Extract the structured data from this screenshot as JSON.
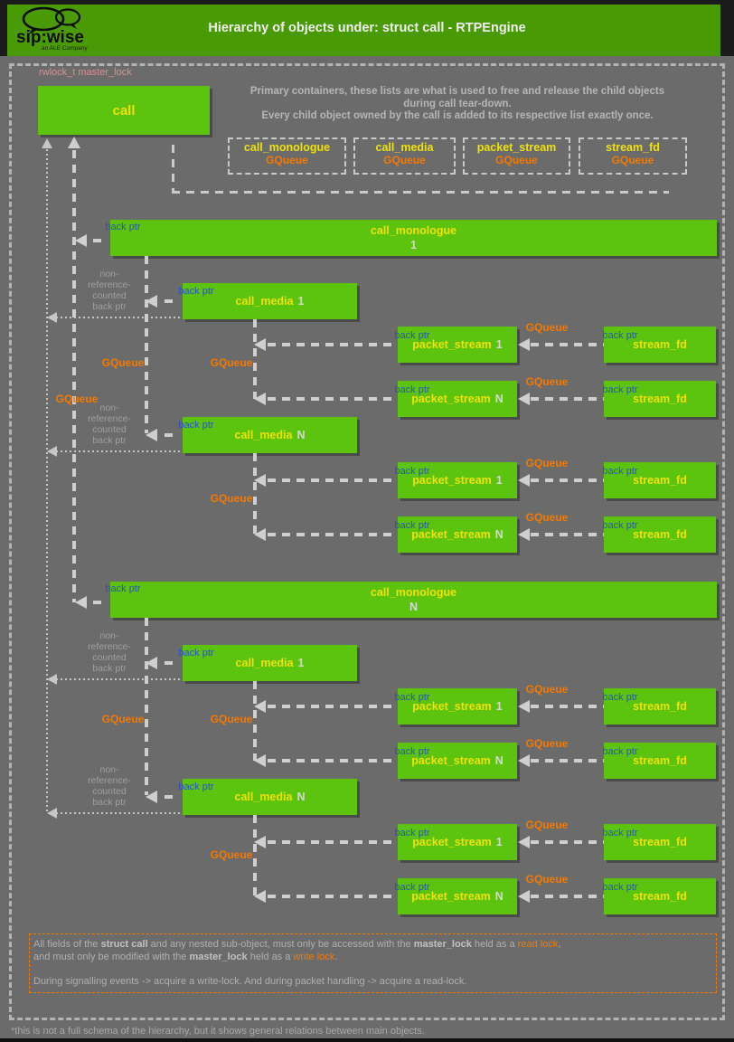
{
  "header": {
    "title": "Hierarchy of objects under: struct call - RTPEngine",
    "logo": {
      "brand": "sip:wise",
      "tagline": "an ALE Company"
    }
  },
  "colors": {
    "header_green": "#4a9a06",
    "box_green": "#5cc30e",
    "accent_yellow": "#eee20a",
    "accent_orange": "#f57900",
    "back_ptr_blue": "#2b50c8",
    "lock_pink": "#dd8e8e"
  },
  "diagram": {
    "master_lock_label": "rwlock_t master_lock",
    "call_label": "call",
    "intro": [
      "Primary containers, these lists are what is used to free and release the child objects",
      "during call tear-down.",
      "Every child object owned by the call is added to its respective list exactly once."
    ],
    "containers": [
      {
        "name": "call_monologue",
        "type": "GQueue"
      },
      {
        "name": "call_media",
        "type": "GQueue"
      },
      {
        "name": "packet_stream",
        "type": "GQueue"
      },
      {
        "name": "stream_fd",
        "type": "GQueue"
      }
    ],
    "labels": {
      "back_ptr": "back ptr",
      "gqueue": "GQueue",
      "non_ref_lines": [
        "non-",
        "reference-",
        "counted",
        "back ptr"
      ]
    },
    "monologues": [
      {
        "name": "call_monologue",
        "index": "1",
        "medias": [
          {
            "name": "call_media",
            "index": "1",
            "streams": [
              {
                "name": "packet_stream",
                "index": "1",
                "fd": "stream_fd"
              },
              {
                "name": "packet_stream",
                "index": "N",
                "fd": "stream_fd"
              }
            ]
          },
          {
            "name": "call_media",
            "index": "N",
            "streams": [
              {
                "name": "packet_stream",
                "index": "1",
                "fd": "stream_fd"
              },
              {
                "name": "packet_stream",
                "index": "N",
                "fd": "stream_fd"
              }
            ]
          }
        ]
      },
      {
        "name": "call_monologue",
        "index": "N",
        "medias": [
          {
            "name": "call_media",
            "index": "1",
            "streams": [
              {
                "name": "packet_stream",
                "index": "1",
                "fd": "stream_fd"
              },
              {
                "name": "packet_stream",
                "index": "N",
                "fd": "stream_fd"
              }
            ]
          },
          {
            "name": "call_media",
            "index": "N",
            "streams": [
              {
                "name": "packet_stream",
                "index": "1",
                "fd": "stream_fd"
              },
              {
                "name": "packet_stream",
                "index": "N",
                "fd": "stream_fd"
              }
            ]
          }
        ]
      }
    ]
  },
  "legend": {
    "lines": [
      [
        {
          "t": "All fields of the "
        },
        {
          "t": "struct call",
          "b": true
        },
        {
          "t": " and any nested sub-object, must only be accessed with the "
        },
        {
          "t": "master_lock",
          "b": true
        },
        {
          "t": " held as a "
        },
        {
          "t": "read lock",
          "c": "orange"
        },
        {
          "t": ","
        }
      ],
      [
        {
          "t": "and must only be modified with the "
        },
        {
          "t": "master_lock",
          "b": true
        },
        {
          "t": " held as a "
        },
        {
          "t": "write lock",
          "c": "orange"
        },
        {
          "t": "."
        }
      ],
      [],
      [
        {
          "t": "During signalling events -> acquire a write-lock. And during packet handling -> acquire a read-lock."
        }
      ]
    ]
  },
  "footer": {
    "note": "*this is not a full schema of the hierarchy, but it shows general relations between main objects."
  }
}
